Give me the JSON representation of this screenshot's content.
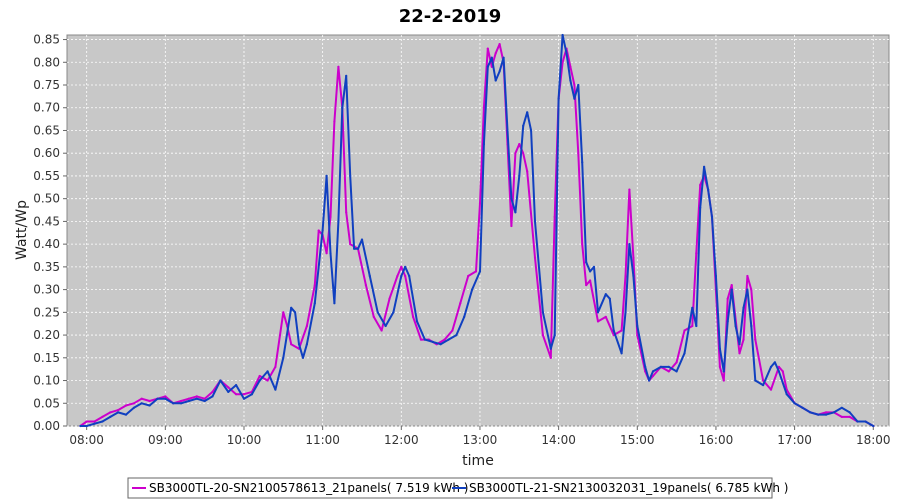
{
  "chart_data": {
    "type": "line",
    "title": "22-2-2019",
    "xlabel": "time",
    "ylabel": "Watt/Wp",
    "x_unit": "hours",
    "xlim": [
      7.75,
      18.2
    ],
    "ylim": [
      0,
      0.86
    ],
    "x_ticks": [
      {
        "value": 8,
        "label": "08:00"
      },
      {
        "value": 9,
        "label": "09:00"
      },
      {
        "value": 10,
        "label": "10:00"
      },
      {
        "value": 11,
        "label": "11:00"
      },
      {
        "value": 12,
        "label": "12:00"
      },
      {
        "value": 13,
        "label": "13:00"
      },
      {
        "value": 14,
        "label": "14:00"
      },
      {
        "value": 15,
        "label": "15:00"
      },
      {
        "value": 16,
        "label": "16:00"
      },
      {
        "value": 17,
        "label": "17:00"
      },
      {
        "value": 18,
        "label": "18:00"
      }
    ],
    "y_ticks": [
      "0.00",
      "0.05",
      "0.10",
      "0.15",
      "0.20",
      "0.25",
      "0.30",
      "0.35",
      "0.40",
      "0.45",
      "0.50",
      "0.55",
      "0.60",
      "0.65",
      "0.70",
      "0.75",
      "0.80",
      "0.85"
    ],
    "grid": true,
    "legend_position": "bottom",
    "colors": {
      "plot_background": "#c8c8c8",
      "grid": "#ffffff"
    },
    "series": [
      {
        "name": "SB3000TL-20-SN2100578613_21panels( 7.519 kWh )",
        "color": "#cc00cc",
        "points": [
          [
            7.92,
            0.0
          ],
          [
            8.0,
            0.01
          ],
          [
            8.1,
            0.01
          ],
          [
            8.2,
            0.02
          ],
          [
            8.3,
            0.03
          ],
          [
            8.4,
            0.035
          ],
          [
            8.5,
            0.045
          ],
          [
            8.6,
            0.05
          ],
          [
            8.7,
            0.06
          ],
          [
            8.8,
            0.055
          ],
          [
            8.9,
            0.06
          ],
          [
            9.0,
            0.065
          ],
          [
            9.1,
            0.05
          ],
          [
            9.2,
            0.055
          ],
          [
            9.3,
            0.06
          ],
          [
            9.4,
            0.065
          ],
          [
            9.5,
            0.06
          ],
          [
            9.6,
            0.075
          ],
          [
            9.7,
            0.1
          ],
          [
            9.8,
            0.085
          ],
          [
            9.9,
            0.07
          ],
          [
            10.0,
            0.07
          ],
          [
            10.1,
            0.075
          ],
          [
            10.2,
            0.11
          ],
          [
            10.3,
            0.1
          ],
          [
            10.4,
            0.13
          ],
          [
            10.5,
            0.25
          ],
          [
            10.55,
            0.22
          ],
          [
            10.6,
            0.18
          ],
          [
            10.7,
            0.17
          ],
          [
            10.8,
            0.22
          ],
          [
            10.9,
            0.31
          ],
          [
            10.95,
            0.43
          ],
          [
            11.0,
            0.42
          ],
          [
            11.05,
            0.38
          ],
          [
            11.1,
            0.46
          ],
          [
            11.15,
            0.67
          ],
          [
            11.2,
            0.79
          ],
          [
            11.25,
            0.7
          ],
          [
            11.3,
            0.47
          ],
          [
            11.35,
            0.4
          ],
          [
            11.45,
            0.39
          ],
          [
            11.55,
            0.31
          ],
          [
            11.65,
            0.24
          ],
          [
            11.75,
            0.21
          ],
          [
            11.85,
            0.28
          ],
          [
            11.95,
            0.33
          ],
          [
            12.0,
            0.35
          ],
          [
            12.05,
            0.33
          ],
          [
            12.15,
            0.24
          ],
          [
            12.25,
            0.19
          ],
          [
            12.35,
            0.19
          ],
          [
            12.45,
            0.18
          ],
          [
            12.55,
            0.19
          ],
          [
            12.65,
            0.21
          ],
          [
            12.75,
            0.27
          ],
          [
            12.85,
            0.33
          ],
          [
            12.95,
            0.34
          ],
          [
            13.0,
            0.49
          ],
          [
            13.05,
            0.7
          ],
          [
            13.1,
            0.83
          ],
          [
            13.15,
            0.79
          ],
          [
            13.2,
            0.82
          ],
          [
            13.25,
            0.84
          ],
          [
            13.3,
            0.8
          ],
          [
            13.35,
            0.62
          ],
          [
            13.4,
            0.44
          ],
          [
            13.45,
            0.6
          ],
          [
            13.5,
            0.62
          ],
          [
            13.55,
            0.6
          ],
          [
            13.6,
            0.56
          ],
          [
            13.7,
            0.37
          ],
          [
            13.8,
            0.2
          ],
          [
            13.9,
            0.15
          ],
          [
            13.95,
            0.46
          ],
          [
            14.0,
            0.72
          ],
          [
            14.05,
            0.8
          ],
          [
            14.1,
            0.83
          ],
          [
            14.15,
            0.79
          ],
          [
            14.2,
            0.75
          ],
          [
            14.25,
            0.6
          ],
          [
            14.3,
            0.4
          ],
          [
            14.35,
            0.31
          ],
          [
            14.4,
            0.32
          ],
          [
            14.5,
            0.23
          ],
          [
            14.6,
            0.24
          ],
          [
            14.7,
            0.2
          ],
          [
            14.8,
            0.21
          ],
          [
            14.85,
            0.33
          ],
          [
            14.9,
            0.52
          ],
          [
            14.95,
            0.37
          ],
          [
            15.0,
            0.2
          ],
          [
            15.1,
            0.12
          ],
          [
            15.15,
            0.1
          ],
          [
            15.2,
            0.11
          ],
          [
            15.3,
            0.13
          ],
          [
            15.4,
            0.12
          ],
          [
            15.5,
            0.14
          ],
          [
            15.6,
            0.21
          ],
          [
            15.7,
            0.22
          ],
          [
            15.75,
            0.38
          ],
          [
            15.8,
            0.53
          ],
          [
            15.85,
            0.55
          ],
          [
            15.9,
            0.52
          ],
          [
            15.95,
            0.46
          ],
          [
            16.0,
            0.3
          ],
          [
            16.05,
            0.13
          ],
          [
            16.1,
            0.1
          ],
          [
            16.15,
            0.28
          ],
          [
            16.2,
            0.31
          ],
          [
            16.3,
            0.16
          ],
          [
            16.35,
            0.19
          ],
          [
            16.4,
            0.33
          ],
          [
            16.45,
            0.3
          ],
          [
            16.5,
            0.19
          ],
          [
            16.6,
            0.1
          ],
          [
            16.7,
            0.08
          ],
          [
            16.8,
            0.13
          ],
          [
            16.85,
            0.12
          ],
          [
            16.9,
            0.08
          ],
          [
            17.0,
            0.05
          ],
          [
            17.1,
            0.04
          ],
          [
            17.2,
            0.03
          ],
          [
            17.3,
            0.025
          ],
          [
            17.4,
            0.03
          ],
          [
            17.5,
            0.03
          ],
          [
            17.6,
            0.02
          ],
          [
            17.7,
            0.02
          ],
          [
            17.8,
            0.01
          ],
          [
            17.9,
            0.01
          ],
          [
            18.0,
            0.0
          ]
        ]
      },
      {
        "name": "SB3000TL-21-SN2130032031_19panels( 6.785 kWh )",
        "color": "#1040c0",
        "points": [
          [
            7.92,
            0.0
          ],
          [
            8.0,
            0.0
          ],
          [
            8.1,
            0.005
          ],
          [
            8.2,
            0.01
          ],
          [
            8.3,
            0.02
          ],
          [
            8.4,
            0.03
          ],
          [
            8.5,
            0.025
          ],
          [
            8.6,
            0.04
          ],
          [
            8.7,
            0.05
          ],
          [
            8.8,
            0.045
          ],
          [
            8.9,
            0.06
          ],
          [
            9.0,
            0.06
          ],
          [
            9.1,
            0.05
          ],
          [
            9.2,
            0.05
          ],
          [
            9.3,
            0.055
          ],
          [
            9.4,
            0.06
          ],
          [
            9.5,
            0.055
          ],
          [
            9.6,
            0.065
          ],
          [
            9.7,
            0.1
          ],
          [
            9.8,
            0.075
          ],
          [
            9.9,
            0.09
          ],
          [
            10.0,
            0.06
          ],
          [
            10.1,
            0.07
          ],
          [
            10.2,
            0.1
          ],
          [
            10.3,
            0.12
          ],
          [
            10.4,
            0.08
          ],
          [
            10.5,
            0.15
          ],
          [
            10.6,
            0.26
          ],
          [
            10.65,
            0.25
          ],
          [
            10.7,
            0.18
          ],
          [
            10.75,
            0.15
          ],
          [
            10.8,
            0.18
          ],
          [
            10.9,
            0.27
          ],
          [
            11.0,
            0.43
          ],
          [
            11.05,
            0.55
          ],
          [
            11.1,
            0.38
          ],
          [
            11.15,
            0.27
          ],
          [
            11.2,
            0.45
          ],
          [
            11.25,
            0.7
          ],
          [
            11.3,
            0.77
          ],
          [
            11.35,
            0.55
          ],
          [
            11.4,
            0.39
          ],
          [
            11.45,
            0.39
          ],
          [
            11.5,
            0.41
          ],
          [
            11.6,
            0.33
          ],
          [
            11.7,
            0.25
          ],
          [
            11.8,
            0.22
          ],
          [
            11.9,
            0.25
          ],
          [
            12.0,
            0.33
          ],
          [
            12.05,
            0.35
          ],
          [
            12.1,
            0.33
          ],
          [
            12.2,
            0.23
          ],
          [
            12.3,
            0.19
          ],
          [
            12.4,
            0.185
          ],
          [
            12.5,
            0.18
          ],
          [
            12.6,
            0.19
          ],
          [
            12.7,
            0.2
          ],
          [
            12.8,
            0.24
          ],
          [
            12.9,
            0.3
          ],
          [
            13.0,
            0.34
          ],
          [
            13.05,
            0.62
          ],
          [
            13.1,
            0.79
          ],
          [
            13.15,
            0.81
          ],
          [
            13.2,
            0.76
          ],
          [
            13.25,
            0.78
          ],
          [
            13.3,
            0.81
          ],
          [
            13.35,
            0.65
          ],
          [
            13.4,
            0.5
          ],
          [
            13.45,
            0.47
          ],
          [
            13.5,
            0.55
          ],
          [
            13.55,
            0.66
          ],
          [
            13.6,
            0.69
          ],
          [
            13.65,
            0.65
          ],
          [
            13.7,
            0.45
          ],
          [
            13.8,
            0.25
          ],
          [
            13.9,
            0.17
          ],
          [
            13.95,
            0.2
          ],
          [
            14.0,
            0.72
          ],
          [
            14.05,
            0.86
          ],
          [
            14.1,
            0.82
          ],
          [
            14.15,
            0.76
          ],
          [
            14.2,
            0.72
          ],
          [
            14.25,
            0.75
          ],
          [
            14.3,
            0.58
          ],
          [
            14.35,
            0.36
          ],
          [
            14.4,
            0.34
          ],
          [
            14.45,
            0.35
          ],
          [
            14.5,
            0.25
          ],
          [
            14.6,
            0.29
          ],
          [
            14.65,
            0.28
          ],
          [
            14.7,
            0.21
          ],
          [
            14.8,
            0.16
          ],
          [
            14.85,
            0.25
          ],
          [
            14.9,
            0.4
          ],
          [
            14.95,
            0.33
          ],
          [
            15.0,
            0.22
          ],
          [
            15.1,
            0.13
          ],
          [
            15.15,
            0.1
          ],
          [
            15.2,
            0.12
          ],
          [
            15.3,
            0.13
          ],
          [
            15.4,
            0.13
          ],
          [
            15.5,
            0.12
          ],
          [
            15.6,
            0.16
          ],
          [
            15.7,
            0.26
          ],
          [
            15.75,
            0.22
          ],
          [
            15.8,
            0.48
          ],
          [
            15.85,
            0.57
          ],
          [
            15.9,
            0.52
          ],
          [
            15.95,
            0.46
          ],
          [
            16.0,
            0.33
          ],
          [
            16.05,
            0.17
          ],
          [
            16.1,
            0.12
          ],
          [
            16.15,
            0.23
          ],
          [
            16.2,
            0.3
          ],
          [
            16.25,
            0.22
          ],
          [
            16.3,
            0.18
          ],
          [
            16.35,
            0.26
          ],
          [
            16.4,
            0.3
          ],
          [
            16.45,
            0.22
          ],
          [
            16.5,
            0.1
          ],
          [
            16.6,
            0.09
          ],
          [
            16.7,
            0.13
          ],
          [
            16.75,
            0.14
          ],
          [
            16.8,
            0.12
          ],
          [
            16.9,
            0.07
          ],
          [
            17.0,
            0.05
          ],
          [
            17.1,
            0.04
          ],
          [
            17.2,
            0.03
          ],
          [
            17.3,
            0.025
          ],
          [
            17.4,
            0.025
          ],
          [
            17.5,
            0.03
          ],
          [
            17.6,
            0.04
          ],
          [
            17.7,
            0.03
          ],
          [
            17.8,
            0.01
          ],
          [
            17.9,
            0.01
          ],
          [
            18.0,
            0.0
          ]
        ]
      }
    ]
  }
}
